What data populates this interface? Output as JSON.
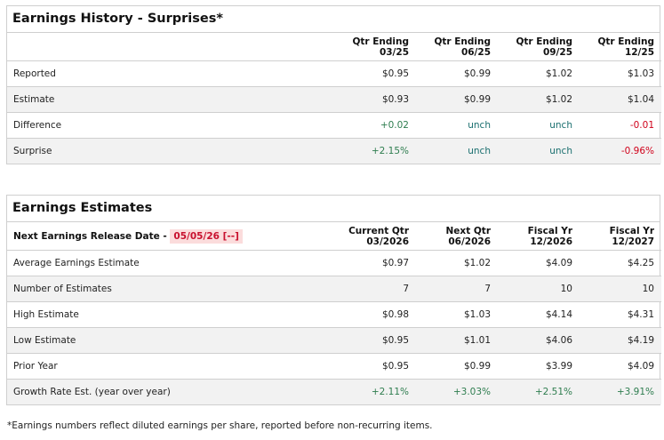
{
  "colors": {
    "positive": "#2e7d4f",
    "negative": "#d0021b",
    "unchanged": "#1a6f6f",
    "date_badge_bg": "#fbdcdc"
  },
  "history": {
    "title": "Earnings History - Surprises*",
    "headers": [
      [
        "Qtr Ending",
        "03/25"
      ],
      [
        "Qtr Ending",
        "06/25"
      ],
      [
        "Qtr Ending",
        "09/25"
      ],
      [
        "Qtr Ending",
        "12/25"
      ]
    ],
    "rows": [
      {
        "label": "Reported",
        "values": [
          "$0.95",
          "$0.99",
          "$1.02",
          "$1.03"
        ],
        "tones": [
          "",
          "",
          "",
          ""
        ]
      },
      {
        "label": "Estimate",
        "values": [
          "$0.93",
          "$0.99",
          "$1.02",
          "$1.04"
        ],
        "tones": [
          "",
          "",
          "",
          ""
        ]
      },
      {
        "label": "Difference",
        "values": [
          "+0.02",
          "unch",
          "unch",
          "-0.01"
        ],
        "tones": [
          "pos",
          "unch",
          "unch",
          "neg"
        ]
      },
      {
        "label": "Surprise",
        "values": [
          "+2.15%",
          "unch",
          "unch",
          "-0.96%"
        ],
        "tones": [
          "pos",
          "unch",
          "unch",
          "neg"
        ]
      }
    ]
  },
  "estimates": {
    "title": "Earnings Estimates",
    "release_label": "Next Earnings Release Date - ",
    "release_date": "05/05/26 [--]",
    "headers": [
      [
        "Current Qtr",
        "03/2026"
      ],
      [
        "Next Qtr",
        "06/2026"
      ],
      [
        "Fiscal Yr",
        "12/2026"
      ],
      [
        "Fiscal Yr",
        "12/2027"
      ]
    ],
    "rows": [
      {
        "label": "Average Earnings Estimate",
        "values": [
          "$0.97",
          "$1.02",
          "$4.09",
          "$4.25"
        ],
        "tones": [
          "",
          "",
          "",
          ""
        ]
      },
      {
        "label": "Number of Estimates",
        "values": [
          "7",
          "7",
          "10",
          "10"
        ],
        "tones": [
          "",
          "",
          "",
          ""
        ]
      },
      {
        "label": "High Estimate",
        "values": [
          "$0.98",
          "$1.03",
          "$4.14",
          "$4.31"
        ],
        "tones": [
          "",
          "",
          "",
          ""
        ]
      },
      {
        "label": "Low Estimate",
        "values": [
          "$0.95",
          "$1.01",
          "$4.06",
          "$4.19"
        ],
        "tones": [
          "",
          "",
          "",
          ""
        ]
      },
      {
        "label": "Prior Year",
        "values": [
          "$0.95",
          "$0.99",
          "$3.99",
          "$4.09"
        ],
        "tones": [
          "",
          "",
          "",
          ""
        ]
      },
      {
        "label": "Growth Rate Est. (year over year)",
        "values": [
          "+2.11%",
          "+3.03%",
          "+2.51%",
          "+3.91%"
        ],
        "tones": [
          "pos",
          "pos",
          "pos",
          "pos"
        ]
      }
    ]
  },
  "footnote": "*Earnings numbers reflect diluted earnings per share, reported before non-recurring items."
}
